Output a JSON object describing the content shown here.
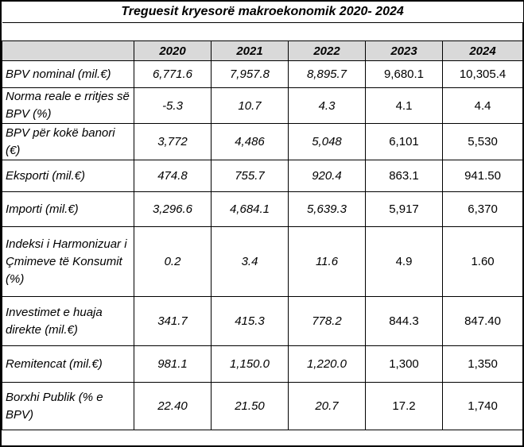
{
  "title": "Treguesit kryesorë makroekonomik 2020- 2024",
  "years": [
    "2020",
    "2021",
    "2022",
    "2023",
    "2024"
  ],
  "rows": [
    {
      "label": "BPV nominal (mil.€)",
      "values": [
        "6,771.6",
        "7,957.8",
        "8,895.7",
        "9,680.1",
        "10,305.4"
      ]
    },
    {
      "label": "Norma reale e rritjes së BPV (%)",
      "values": [
        "-5.3",
        "10.7",
        "4.3",
        "4.1",
        "4.4"
      ]
    },
    {
      "label": "BPV për kokë banori (€)",
      "values": [
        "3,772",
        "4,486",
        "5,048",
        "6,101",
        "5,530"
      ]
    },
    {
      "label": "Eksporti (mil.€)",
      "values": [
        "474.8",
        "755.7",
        "920.4",
        "863.1",
        "941.50"
      ]
    },
    {
      "label": "Importi (mil.€)",
      "values": [
        "3,296.6",
        "4,684.1",
        "5,639.3",
        "5,917",
        "6,370"
      ]
    },
    {
      "label": "Indeksi i Harmonizuar i Çmimeve të Konsumit (%)",
      "values": [
        "0.2",
        "3.4",
        "11.6",
        "4.9",
        "1.60"
      ]
    },
    {
      "label": "Investimet e huaja direkte (mil.€)",
      "values": [
        "341.7",
        "415.3",
        "778.2",
        "844.3",
        "847.40"
      ]
    },
    {
      "label": "Remitencat (mil.€)",
      "values": [
        "981.1",
        "1,150.0",
        "1,220.0",
        "1,300",
        "1,350"
      ]
    },
    {
      "label": "Borxhi Publik (% e BPV)",
      "values": [
        "22.40",
        "21.50",
        "20.7",
        "17.2",
        "1,740"
      ]
    }
  ]
}
